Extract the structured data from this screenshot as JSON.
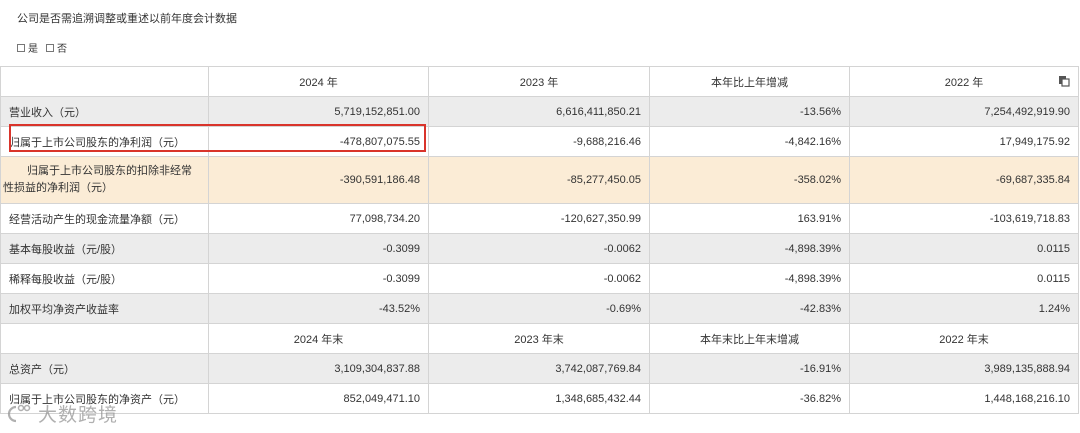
{
  "question": "公司是否需追溯调整或重述以前年度会计数据",
  "options": [
    {
      "label": "是"
    },
    {
      "label": "否"
    }
  ],
  "header1": [
    "",
    "2024 年",
    "2023 年",
    "本年比上年增减",
    "2022 年"
  ],
  "rows1": [
    {
      "label": "营业收入（元）",
      "values": [
        "5,719,152,851.00",
        "6,616,411,850.21",
        "-13.56%",
        "7,254,492,919.90"
      ],
      "style": "grey"
    },
    {
      "label": "归属于上市公司股东的净利润（元）",
      "values": [
        "-478,807,075.55",
        "-9,688,216.46",
        "-4,842.16%",
        "17,949,175.92"
      ],
      "style": "white"
    },
    {
      "label": "归属于上市公司股东的扣除非经常性损益的净利润（元）",
      "values": [
        "-390,591,186.48",
        "-85,277,450.05",
        "-358.02%",
        "-69,687,335.84"
      ],
      "style": "peach"
    },
    {
      "label": "经营活动产生的现金流量净额（元）",
      "values": [
        "77,098,734.20",
        "-120,627,350.99",
        "163.91%",
        "-103,619,718.83"
      ],
      "style": "white"
    },
    {
      "label": "基本每股收益（元/股）",
      "values": [
        "-0.3099",
        "-0.0062",
        "-4,898.39%",
        "0.0115"
      ],
      "style": "grey"
    },
    {
      "label": "稀释每股收益（元/股）",
      "values": [
        "-0.3099",
        "-0.0062",
        "-4,898.39%",
        "0.0115"
      ],
      "style": "white"
    },
    {
      "label": "加权平均净资产收益率",
      "values": [
        "-43.52%",
        "-0.69%",
        "-42.83%",
        "1.24%"
      ],
      "style": "grey"
    }
  ],
  "header2": [
    "",
    "2024 年末",
    "2023 年末",
    "本年末比上年末增减",
    "2022 年末"
  ],
  "rows2": [
    {
      "label": "总资产（元）",
      "values": [
        "3,109,304,837.88",
        "3,742,087,769.84",
        "-16.91%",
        "3,989,135,888.94"
      ],
      "style": "grey"
    },
    {
      "label": "归属于上市公司股东的净资产（元）",
      "values": [
        "852,049,471.10",
        "1,348,685,432.44",
        "-36.82%",
        "1,448,168,216.10"
      ],
      "style": "white"
    }
  ],
  "watermark": "大数跨境",
  "icons": {
    "copy": "copy-icon",
    "logo": "watermark-logo-icon"
  }
}
